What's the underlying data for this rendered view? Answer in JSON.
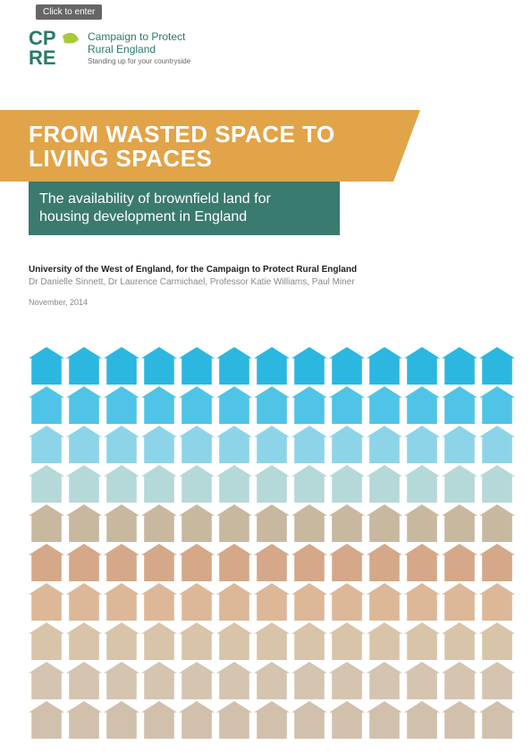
{
  "button": {
    "label": "Click to enter"
  },
  "logo": {
    "line1": "Campaign to Protect",
    "line2": "Rural England",
    "tagline": "Standing up for your countryside",
    "colors": {
      "primary": "#2a7a6a",
      "accent": "#a8c93a"
    }
  },
  "title": {
    "text": "FROM WASTED SPACE TO LIVING SPACES",
    "background": "#e2a448",
    "text_color": "#ffffff",
    "fontsize": 26
  },
  "subtitle": {
    "text": "The availability of brownfield land for housing development in England",
    "background": "#3a7a6f",
    "text_color": "#ffffff",
    "fontsize": 16
  },
  "credits": {
    "organisation": "University of the West of England, for the Campaign to Protect Rural England",
    "authors": "Dr Danielle Sinnett, Dr Laurence Carmichael, Professor Katie Williams, Paul Miner",
    "date": "November, 2014"
  },
  "infographic": {
    "type": "icon-grid",
    "rows": 10,
    "cols": 13,
    "icon": "house",
    "row_colors": [
      "#2bb7e0",
      "#4fc4e6",
      "#8ed4e8",
      "#b5d8d8",
      "#c8b8a0",
      "#d4a888",
      "#dcb898",
      "#d8c4a8",
      "#d4c4b0",
      "#d0c0ac"
    ],
    "description": "Grid of house-shaped icons; top rows shaded sky-blue transitioning through building/urban tones to brown earth tones at bottom, representing brownfield-to-housing transformation."
  }
}
